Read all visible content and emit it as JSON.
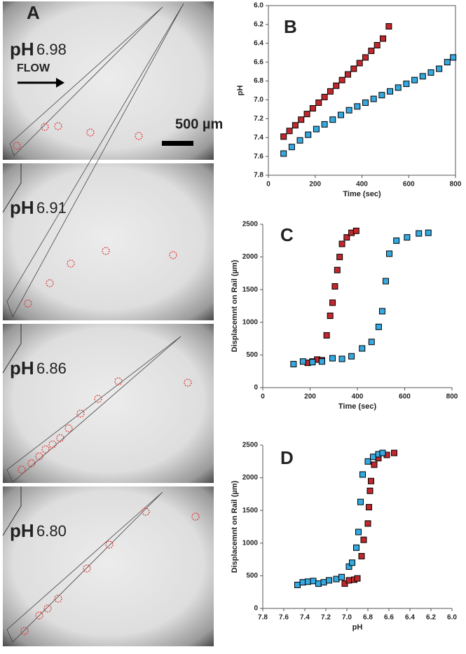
{
  "panel_a": {
    "label": "A",
    "flow": "FLOW",
    "scale": "500 µm",
    "frames": [
      {
        "ph_label": "pH",
        "ph": "6.98"
      },
      {
        "ph_label": "pH",
        "ph": "6.91"
      },
      {
        "ph_label": "pH",
        "ph": "6.86"
      },
      {
        "ph_label": "pH",
        "ph": "6.80"
      }
    ]
  },
  "chart_data": [
    {
      "type": "scatter",
      "panel": "B",
      "xlabel": "Time (sec)",
      "ylabel": "pH",
      "xlim": [
        0,
        800
      ],
      "xticks": [
        0,
        200,
        400,
        600,
        800
      ],
      "ylim": [
        6.0,
        7.8
      ],
      "y_inverted": true,
      "frame": true,
      "yticks": [
        {
          "value": 6.0,
          "label": "6.0"
        },
        {
          "value": 6.2,
          "label": "6.2"
        },
        {
          "value": 6.4,
          "label": "6.4"
        },
        {
          "value": 6.6,
          "label": "6.6"
        },
        {
          "value": 6.8,
          "label": "6.8"
        },
        {
          "value": 7.0,
          "label": "7.0"
        },
        {
          "value": 7.2,
          "label": "7.2"
        },
        {
          "value": 7.4,
          "label": "7.4"
        },
        {
          "value": 7.6,
          "label": "7.6"
        },
        {
          "value": 7.8,
          "label": "7.8"
        }
      ],
      "series": [
        {
          "color": "#c0282d",
          "x": [
            65,
            90,
            115,
            140,
            165,
            190,
            215,
            240,
            265,
            290,
            315,
            340,
            365,
            390,
            415,
            440,
            465,
            490,
            515
          ],
          "values": [
            7.39,
            7.33,
            7.27,
            7.21,
            7.15,
            7.09,
            7.03,
            6.97,
            6.91,
            6.85,
            6.79,
            6.73,
            6.67,
            6.61,
            6.55,
            6.48,
            6.42,
            6.35,
            6.22
          ]
        },
        {
          "color": "#35a9e0",
          "x": [
            65,
            100,
            135,
            170,
            205,
            240,
            275,
            310,
            345,
            380,
            415,
            450,
            485,
            520,
            555,
            590,
            625,
            660,
            695,
            730,
            765,
            790
          ],
          "values": [
            7.57,
            7.5,
            7.43,
            7.37,
            7.31,
            7.26,
            7.21,
            7.16,
            7.11,
            7.07,
            7.03,
            6.99,
            6.95,
            6.91,
            6.87,
            6.83,
            6.79,
            6.75,
            6.71,
            6.67,
            6.6,
            6.55
          ]
        }
      ]
    },
    {
      "type": "scatter",
      "panel": "C",
      "xlabel": "Time (sec)",
      "ylabel": "Displacemnt on  Rail (µm)",
      "xlim": [
        0,
        800
      ],
      "xticks": [
        0,
        200,
        400,
        600,
        800
      ],
      "ylim": [
        0,
        2500
      ],
      "yticks": [
        0,
        500,
        1000,
        1500,
        2000,
        2500
      ],
      "series": [
        {
          "color": "#c0282d",
          "x": [
            190,
            210,
            230,
            250,
            270,
            285,
            295,
            305,
            315,
            325,
            335,
            355,
            375,
            395
          ],
          "values": [
            380,
            400,
            430,
            420,
            800,
            1100,
            1300,
            1550,
            1800,
            2000,
            2200,
            2300,
            2370,
            2400
          ]
        },
        {
          "color": "#35a9e0",
          "x": [
            130,
            170,
            210,
            250,
            295,
            335,
            375,
            420,
            460,
            490,
            505,
            520,
            535,
            565,
            610,
            660,
            700
          ],
          "values": [
            360,
            400,
            390,
            400,
            450,
            440,
            480,
            600,
            700,
            930,
            1170,
            1630,
            2050,
            2250,
            2300,
            2360,
            2370
          ]
        }
      ]
    },
    {
      "type": "scatter",
      "panel": "D",
      "xlabel": "pH",
      "ylabel": "Displacemnt on Rail (µm)",
      "xlim": [
        7.8,
        6.0
      ],
      "ylim": [
        0,
        2500
      ],
      "yticks": [
        0,
        500,
        1000,
        1500,
        2000,
        2500
      ],
      "xticks": [
        {
          "value": 7.8,
          "label": "7.8"
        },
        {
          "value": 7.6,
          "label": "7.6"
        },
        {
          "value": 7.4,
          "label": "7.4"
        },
        {
          "value": 7.2,
          "label": "7.2"
        },
        {
          "value": 7.0,
          "label": "7.0"
        },
        {
          "value": 6.8,
          "label": "6.8"
        },
        {
          "value": 6.6,
          "label": "6.6"
        },
        {
          "value": 6.4,
          "label": "6.4"
        },
        {
          "value": 6.2,
          "label": "6.2"
        },
        {
          "value": 6.0,
          "label": "6.0"
        }
      ],
      "series": [
        {
          "color": "#c0282d",
          "x": [
            7.02,
            6.98,
            6.93,
            6.9,
            6.86,
            6.84,
            6.8,
            6.79,
            6.78,
            6.77,
            6.74,
            6.7,
            6.62,
            6.55
          ],
          "values": [
            380,
            430,
            440,
            460,
            800,
            1050,
            1300,
            1550,
            1800,
            1950,
            2200,
            2300,
            2350,
            2380
          ]
        },
        {
          "color": "#35a9e0",
          "x": [
            7.47,
            7.42,
            7.37,
            7.32,
            7.27,
            7.22,
            7.17,
            7.1,
            7.05,
            6.98,
            6.95,
            6.91,
            6.89,
            6.87,
            6.85,
            6.8,
            6.75,
            6.7,
            6.66
          ],
          "values": [
            360,
            400,
            410,
            420,
            380,
            400,
            430,
            450,
            480,
            640,
            700,
            930,
            1170,
            1630,
            2050,
            2250,
            2320,
            2360,
            2380
          ]
        }
      ]
    }
  ]
}
